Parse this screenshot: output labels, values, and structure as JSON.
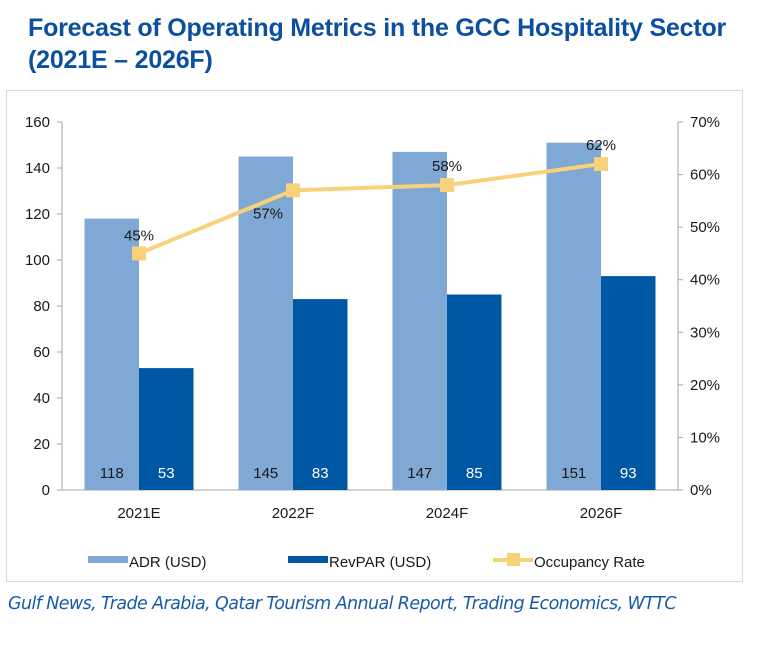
{
  "title": "Forecast of Operating Metrics in the GCC Hospitality Sector (2021E – 2026F)",
  "source": "Gulf News, Trade Arabia, Qatar Tourism Annual Report, Trading Economics, WTTC",
  "colors": {
    "adr": "#7FA8D4",
    "revpar": "#0057A3",
    "occupancy": "#F8D27A",
    "title": "#0A4FA0",
    "source": "#1A5AAA"
  },
  "chart_data": {
    "type": "bar",
    "title": "Forecast of Operating Metrics in the GCC Hospitality Sector (2021E – 2026F)",
    "categories": [
      "2021E",
      "2022F",
      "2024F",
      "2026F"
    ],
    "series": [
      {
        "name": "ADR (USD)",
        "type": "bar",
        "axis": "left",
        "values": [
          118,
          145,
          147,
          151
        ],
        "labels": [
          "118",
          "145",
          "147",
          "151"
        ]
      },
      {
        "name": "RevPAR (USD)",
        "type": "bar",
        "axis": "left",
        "values": [
          53,
          83,
          85,
          93
        ],
        "labels": [
          "53",
          "83",
          "85",
          "93"
        ]
      },
      {
        "name": "Occupancy Rate",
        "type": "line",
        "axis": "right",
        "values": [
          45,
          57,
          58,
          62
        ],
        "labels": [
          "45%",
          "57%",
          "58%",
          "62%"
        ]
      }
    ],
    "left_axis": {
      "ylim": [
        0,
        160
      ],
      "ticks": [
        0,
        20,
        40,
        60,
        80,
        100,
        120,
        140,
        160
      ],
      "tick_labels": [
        "0",
        "20",
        "40",
        "60",
        "80",
        "100",
        "120",
        "140",
        "160"
      ]
    },
    "right_axis": {
      "ylim": [
        0,
        70
      ],
      "ticks": [
        0,
        10,
        20,
        30,
        40,
        50,
        60,
        70
      ],
      "tick_labels": [
        "0%",
        "10%",
        "20%",
        "30%",
        "40%",
        "50%",
        "60%",
        "70%"
      ]
    },
    "xlabel": "",
    "ylabel": "",
    "grid": false,
    "legend": {
      "position": "bottom",
      "entries": [
        "ADR (USD)",
        "RevPAR (USD)",
        "Occupancy Rate"
      ]
    }
  }
}
